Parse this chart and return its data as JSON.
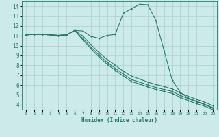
{
  "xlabel": "Humidex (Indice chaleur)",
  "bg_color": "#cceaea",
  "grid_color": "#aacece",
  "line_color": "#2a7a6a",
  "xlim": [
    -0.5,
    23.5
  ],
  "ylim": [
    3.5,
    14.5
  ],
  "xticks": [
    0,
    1,
    2,
    3,
    4,
    5,
    6,
    7,
    8,
    9,
    10,
    11,
    12,
    13,
    14,
    15,
    16,
    17,
    18,
    19,
    20,
    21,
    22,
    23
  ],
  "yticks": [
    4,
    5,
    6,
    7,
    8,
    9,
    10,
    11,
    12,
    13,
    14
  ],
  "series1_y": [
    11.1,
    11.15,
    11.15,
    11.1,
    11.05,
    11.1,
    11.55,
    11.5,
    10.95,
    10.75,
    11.05,
    11.15,
    13.3,
    13.75,
    14.2,
    14.15,
    12.55,
    9.5,
    6.5,
    5.25,
    4.65,
    4.35,
    4.05,
    3.7
  ],
  "series2_y": [
    11.1,
    11.15,
    11.15,
    11.1,
    11.05,
    11.1,
    11.55,
    11.0,
    10.1,
    9.3,
    8.6,
    8.0,
    7.4,
    6.9,
    6.6,
    6.3,
    6.05,
    5.85,
    5.6,
    5.2,
    4.85,
    4.55,
    4.25,
    3.9
  ],
  "series3_y": [
    11.1,
    11.15,
    11.15,
    11.1,
    11.05,
    11.1,
    11.55,
    10.75,
    9.85,
    9.05,
    8.3,
    7.7,
    7.1,
    6.55,
    6.3,
    6.0,
    5.75,
    5.55,
    5.35,
    4.95,
    4.6,
    4.3,
    4.0,
    3.65
  ],
  "series4_y": [
    11.1,
    11.15,
    11.15,
    11.1,
    11.05,
    11.1,
    11.55,
    10.6,
    9.7,
    8.85,
    8.1,
    7.5,
    6.9,
    6.35,
    6.1,
    5.8,
    5.55,
    5.35,
    5.15,
    4.75,
    4.4,
    4.1,
    3.85,
    3.5
  ]
}
